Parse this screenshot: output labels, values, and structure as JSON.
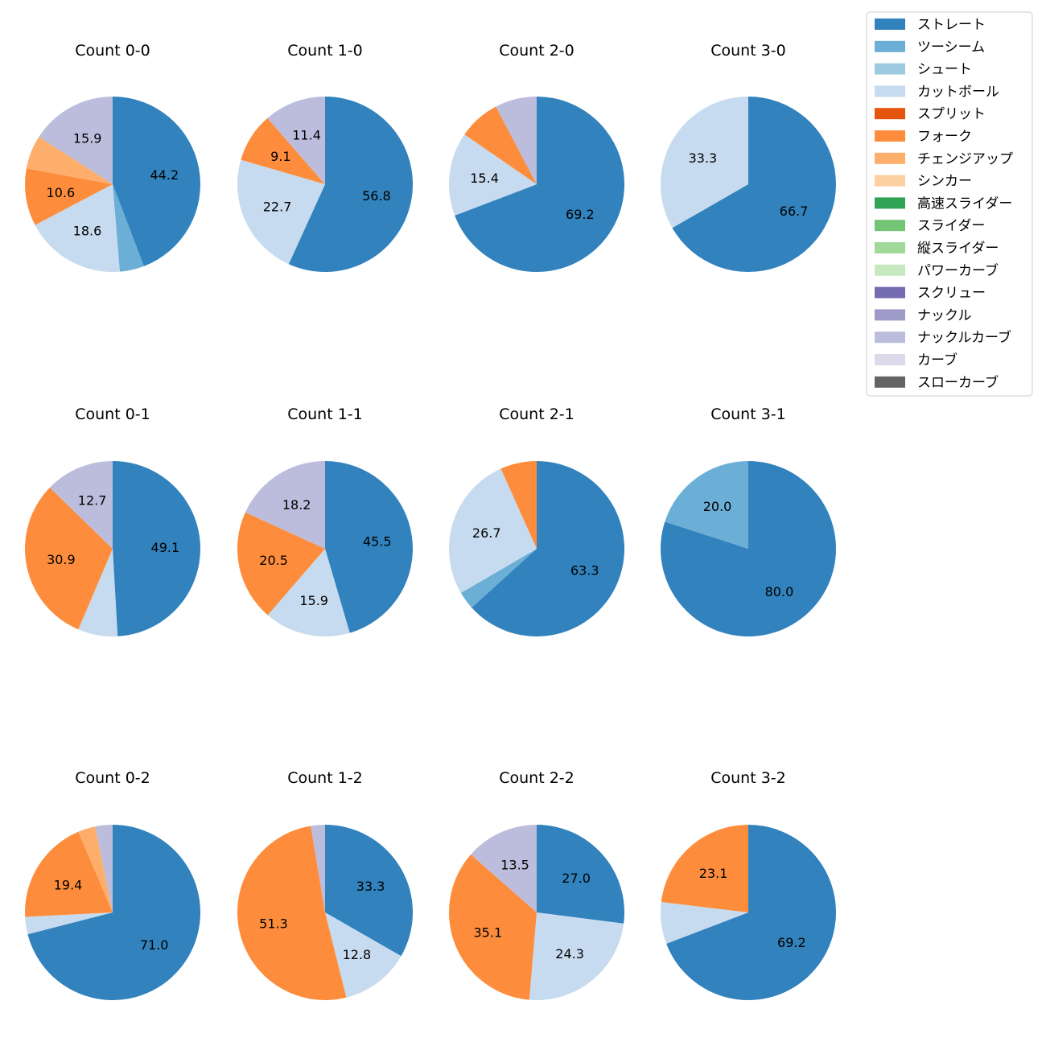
{
  "colors": {
    "ストレート": "#3182bd",
    "ツーシーム": "#6baed6",
    "シュート": "#9ecae1",
    "カットボール": "#c6dbef",
    "スプリット": "#e6550d",
    "フォーク": "#fd8d3c",
    "チェンジアップ": "#fdae6b",
    "シンカー": "#fdd0a2",
    "高速スライダー": "#31a354",
    "スライダー": "#74c476",
    "縦スライダー": "#a1d99b",
    "パワーカーブ": "#c7e9c0",
    "スクリュー": "#756bb1",
    "ナックル": "#9e9ac8",
    "ナックルカーブ": "#bcbddc",
    "カーブ": "#dadaeb",
    "スローカーブ": "#636363"
  },
  "chart_data": {
    "type": "pie",
    "legend": {
      "placement": "top-right",
      "entries": [
        "ストレート",
        "ツーシーム",
        "シュート",
        "カットボール",
        "スプリット",
        "フォーク",
        "チェンジアップ",
        "シンカー",
        "高速スライダー",
        "スライダー",
        "縦スライダー",
        "パワーカーブ",
        "スクリュー",
        "ナックル",
        "ナックルカーブ",
        "カーブ",
        "スローカーブ"
      ]
    },
    "charts": [
      {
        "title": "Count 0-0",
        "slices": [
          {
            "name": "ストレート",
            "value": 44.2,
            "label": "44.2"
          },
          {
            "name": "ツーシーム",
            "value": 4.5,
            "label": ""
          },
          {
            "name": "カットボール",
            "value": 18.6,
            "label": "18.6"
          },
          {
            "name": "フォーク",
            "value": 10.6,
            "label": "10.6"
          },
          {
            "name": "チェンジアップ",
            "value": 6.2,
            "label": ""
          },
          {
            "name": "ナックルカーブ",
            "value": 15.9,
            "label": "15.9"
          }
        ]
      },
      {
        "title": "Count 1-0",
        "slices": [
          {
            "name": "ストレート",
            "value": 56.8,
            "label": "56.8"
          },
          {
            "name": "カットボール",
            "value": 22.7,
            "label": "22.7"
          },
          {
            "name": "フォーク",
            "value": 9.1,
            "label": "9.1"
          },
          {
            "name": "ナックルカーブ",
            "value": 11.4,
            "label": "11.4"
          }
        ]
      },
      {
        "title": "Count 2-0",
        "slices": [
          {
            "name": "ストレート",
            "value": 69.2,
            "label": "69.2"
          },
          {
            "name": "カットボール",
            "value": 15.4,
            "label": "15.4"
          },
          {
            "name": "フォーク",
            "value": 7.7,
            "label": ""
          },
          {
            "name": "ナックルカーブ",
            "value": 7.7,
            "label": ""
          }
        ]
      },
      {
        "title": "Count 3-0",
        "slices": [
          {
            "name": "ストレート",
            "value": 66.7,
            "label": "66.7"
          },
          {
            "name": "カットボール",
            "value": 33.3,
            "label": "33.3"
          }
        ]
      },
      {
        "title": "Count 0-1",
        "slices": [
          {
            "name": "ストレート",
            "value": 49.1,
            "label": "49.1"
          },
          {
            "name": "カットボール",
            "value": 7.3,
            "label": ""
          },
          {
            "name": "フォーク",
            "value": 30.9,
            "label": "30.9"
          },
          {
            "name": "ナックルカーブ",
            "value": 12.7,
            "label": "12.7"
          }
        ]
      },
      {
        "title": "Count 1-1",
        "slices": [
          {
            "name": "ストレート",
            "value": 45.5,
            "label": "45.5"
          },
          {
            "name": "カットボール",
            "value": 15.9,
            "label": "15.9"
          },
          {
            "name": "フォーク",
            "value": 20.5,
            "label": "20.5"
          },
          {
            "name": "ナックルカーブ",
            "value": 18.2,
            "label": "18.2"
          }
        ]
      },
      {
        "title": "Count 2-1",
        "slices": [
          {
            "name": "ストレート",
            "value": 63.3,
            "label": "63.3"
          },
          {
            "name": "ツーシーム",
            "value": 3.3,
            "label": ""
          },
          {
            "name": "カットボール",
            "value": 26.7,
            "label": "26.7"
          },
          {
            "name": "フォーク",
            "value": 6.7,
            "label": ""
          }
        ]
      },
      {
        "title": "Count 3-1",
        "slices": [
          {
            "name": "ストレート",
            "value": 80.0,
            "label": "80.0"
          },
          {
            "name": "ツーシーム",
            "value": 20.0,
            "label": "20.0"
          }
        ]
      },
      {
        "title": "Count 0-2",
        "slices": [
          {
            "name": "ストレート",
            "value": 71.0,
            "label": "71.0"
          },
          {
            "name": "カットボール",
            "value": 3.2,
            "label": ""
          },
          {
            "name": "フォーク",
            "value": 19.4,
            "label": "19.4"
          },
          {
            "name": "チェンジアップ",
            "value": 3.2,
            "label": ""
          },
          {
            "name": "ナックルカーブ",
            "value": 3.2,
            "label": ""
          }
        ]
      },
      {
        "title": "Count 1-2",
        "slices": [
          {
            "name": "ストレート",
            "value": 33.3,
            "label": "33.3"
          },
          {
            "name": "カットボール",
            "value": 12.8,
            "label": "12.8"
          },
          {
            "name": "フォーク",
            "value": 51.3,
            "label": "51.3"
          },
          {
            "name": "ナックルカーブ",
            "value": 2.6,
            "label": ""
          }
        ]
      },
      {
        "title": "Count 2-2",
        "slices": [
          {
            "name": "ストレート",
            "value": 27.0,
            "label": "27.0"
          },
          {
            "name": "カットボール",
            "value": 24.3,
            "label": "24.3"
          },
          {
            "name": "フォーク",
            "value": 35.1,
            "label": "35.1"
          },
          {
            "name": "ナックルカーブ",
            "value": 13.5,
            "label": "13.5"
          }
        ]
      },
      {
        "title": "Count 3-2",
        "slices": [
          {
            "name": "ストレート",
            "value": 69.2,
            "label": "69.2"
          },
          {
            "name": "カットボール",
            "value": 7.7,
            "label": ""
          },
          {
            "name": "フォーク",
            "value": 23.1,
            "label": "23.1"
          }
        ]
      }
    ]
  }
}
